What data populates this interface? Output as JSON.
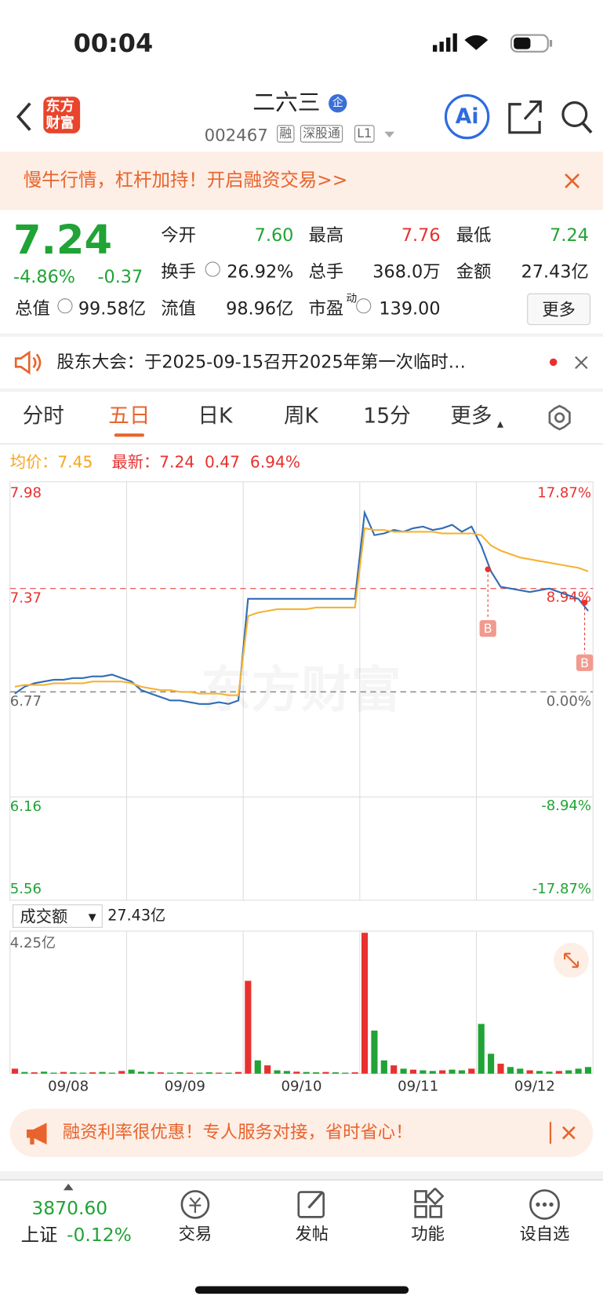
{
  "status": {
    "time": "00:04"
  },
  "header": {
    "logo": [
      "东方",
      "财富"
    ],
    "title": "二六三",
    "badge": "企",
    "code": "002467",
    "tags": [
      "融",
      "深股通",
      "L1"
    ],
    "ai": "Ai"
  },
  "banner": "慢牛行情，杠杆加持！开启融资交易>>",
  "quote": {
    "price": "7.24",
    "change_pct": "-4.86%",
    "change": "-0.37",
    "more": "更多",
    "stats": [
      {
        "label": "今开",
        "value": "7.60"
      },
      {
        "label": "最高",
        "value": "7.76"
      },
      {
        "label": "最低",
        "value": "7.24"
      },
      {
        "label": "换手",
        "value": "26.92%"
      },
      {
        "label": "总手",
        "value": "368.0万"
      },
      {
        "label": "金额",
        "value": "27.43亿"
      },
      {
        "label": "总值",
        "value": "99.58亿"
      },
      {
        "label": "流值",
        "value": "98.96亿"
      },
      {
        "label": "市盈",
        "sup": "动",
        "value": "139.00"
      }
    ]
  },
  "notice": "股东大会：于2025-09-15召开2025年第一次临时…",
  "tabs": [
    "分时",
    "五日",
    "日K",
    "周K",
    "15分",
    "更多"
  ],
  "legend": {
    "avg_label": "均价：",
    "avg": "7.45",
    "latest_label": "最新：",
    "latest": "7.24",
    "change": "0.47",
    "change_pct": "6.94%"
  },
  "watermark": "东方财富",
  "buy_marks": [
    "B",
    "B"
  ],
  "chart_data": [
    {
      "type": "line",
      "xticks": [
        "09/08",
        "09/09",
        "09/10",
        "09/11",
        "09/12"
      ],
      "ylim": [
        5.56,
        7.98
      ],
      "yticks": [
        5.56,
        6.16,
        6.77,
        7.37,
        7.98
      ],
      "y2lim": [
        -17.87,
        17.87
      ],
      "y2ticks": [
        {
          "value": -17.87,
          "label": "-17.87%"
        },
        {
          "value": -8.94,
          "label": "-8.94%"
        },
        {
          "value": 0,
          "label": "0.00%"
        },
        {
          "value": 8.94,
          "label": "8.94%"
        },
        {
          "value": 17.87,
          "label": "17.87%"
        }
      ],
      "series": [
        {
          "color": "#2f6db5",
          "values": [
            6.76,
            6.8,
            6.82,
            6.83,
            6.84,
            6.84,
            6.85,
            6.85,
            6.86,
            6.86,
            6.87,
            6.85,
            6.83,
            6.78,
            6.76,
            6.74,
            6.72,
            6.72,
            6.71,
            6.7,
            6.7,
            6.71,
            6.7,
            6.72,
            7.31,
            7.31,
            7.31,
            7.31,
            7.31,
            7.31,
            7.31,
            7.31,
            7.31,
            7.31,
            7.31,
            7.31,
            7.81,
            7.68,
            7.69,
            7.71,
            7.7,
            7.72,
            7.73,
            7.71,
            7.72,
            7.74,
            7.7,
            7.73,
            7.62,
            7.47,
            7.38,
            7.37,
            7.36,
            7.35,
            7.36,
            7.37,
            7.35,
            7.33,
            7.31,
            7.24
          ]
        },
        {
          "color": "#f5b335",
          "values": [
            6.8,
            6.81,
            6.81,
            6.81,
            6.82,
            6.82,
            6.82,
            6.82,
            6.83,
            6.83,
            6.83,
            6.83,
            6.82,
            6.8,
            6.79,
            6.78,
            6.78,
            6.77,
            6.77,
            6.76,
            6.76,
            6.76,
            6.75,
            6.75,
            7.21,
            7.23,
            7.24,
            7.25,
            7.25,
            7.25,
            7.25,
            7.26,
            7.26,
            7.26,
            7.26,
            7.26,
            7.72,
            7.71,
            7.71,
            7.7,
            7.7,
            7.7,
            7.7,
            7.7,
            7.69,
            7.69,
            7.69,
            7.69,
            7.68,
            7.62,
            7.59,
            7.57,
            7.55,
            7.54,
            7.53,
            7.52,
            7.51,
            7.5,
            7.49,
            7.47
          ]
        }
      ]
    },
    {
      "type": "bar",
      "selector": "成交额",
      "total": "27.43亿",
      "ylim": [
        0,
        4.25
      ],
      "yticks": [
        {
          "value": 4.25,
          "label": "4.25亿"
        }
      ],
      "values": [
        0.15,
        0.05,
        0.04,
        0.06,
        0.03,
        0.05,
        0.04,
        0.03,
        0.04,
        0.05,
        0.03,
        0.08,
        0.12,
        0.06,
        0.05,
        0.04,
        0.03,
        0.04,
        0.03,
        0.03,
        0.04,
        0.03,
        0.03,
        0.05,
        2.8,
        0.4,
        0.25,
        0.1,
        0.08,
        0.06,
        0.05,
        0.04,
        0.05,
        0.04,
        0.03,
        0.04,
        4.25,
        1.3,
        0.4,
        0.25,
        0.15,
        0.12,
        0.1,
        0.08,
        0.1,
        0.12,
        0.1,
        0.15,
        1.5,
        0.6,
        0.3,
        0.2,
        0.15,
        0.1,
        0.08,
        0.06,
        0.08,
        0.1,
        0.15,
        0.2
      ],
      "colors": [
        "#e8312f",
        "#21a336",
        "#e8312f",
        "#21a336",
        "#21a336",
        "#e8312f",
        "#21a336",
        "#21a336",
        "#e8312f",
        "#21a336",
        "#21a336",
        "#e8312f",
        "#21a336",
        "#21a336",
        "#21a336",
        "#e8312f",
        "#21a336",
        "#21a336",
        "#e8312f",
        "#21a336",
        "#21a336",
        "#e8312f",
        "#21a336",
        "#e8312f",
        "#e8312f",
        "#21a336",
        "#e8312f",
        "#21a336",
        "#21a336",
        "#e8312f",
        "#21a336",
        "#21a336",
        "#e8312f",
        "#21a336",
        "#21a336",
        "#e8312f",
        "#e8312f",
        "#21a336",
        "#21a336",
        "#e8312f",
        "#21a336",
        "#e8312f",
        "#21a336",
        "#21a336",
        "#e8312f",
        "#21a336",
        "#21a336",
        "#e8312f",
        "#21a336",
        "#21a336",
        "#e8312f",
        "#21a336",
        "#21a336",
        "#e8312f",
        "#21a336",
        "#21a336",
        "#e8312f",
        "#21a336",
        "#21a336",
        "#21a336"
      ]
    }
  ],
  "ad": "融资利率很优惠！专人服务对接，省时省心！",
  "bottom": {
    "index_value": "3870.60",
    "index_name": "上证",
    "index_change": "-0.12%",
    "tabs": [
      "交易",
      "发帖",
      "功能",
      "设自选"
    ]
  }
}
